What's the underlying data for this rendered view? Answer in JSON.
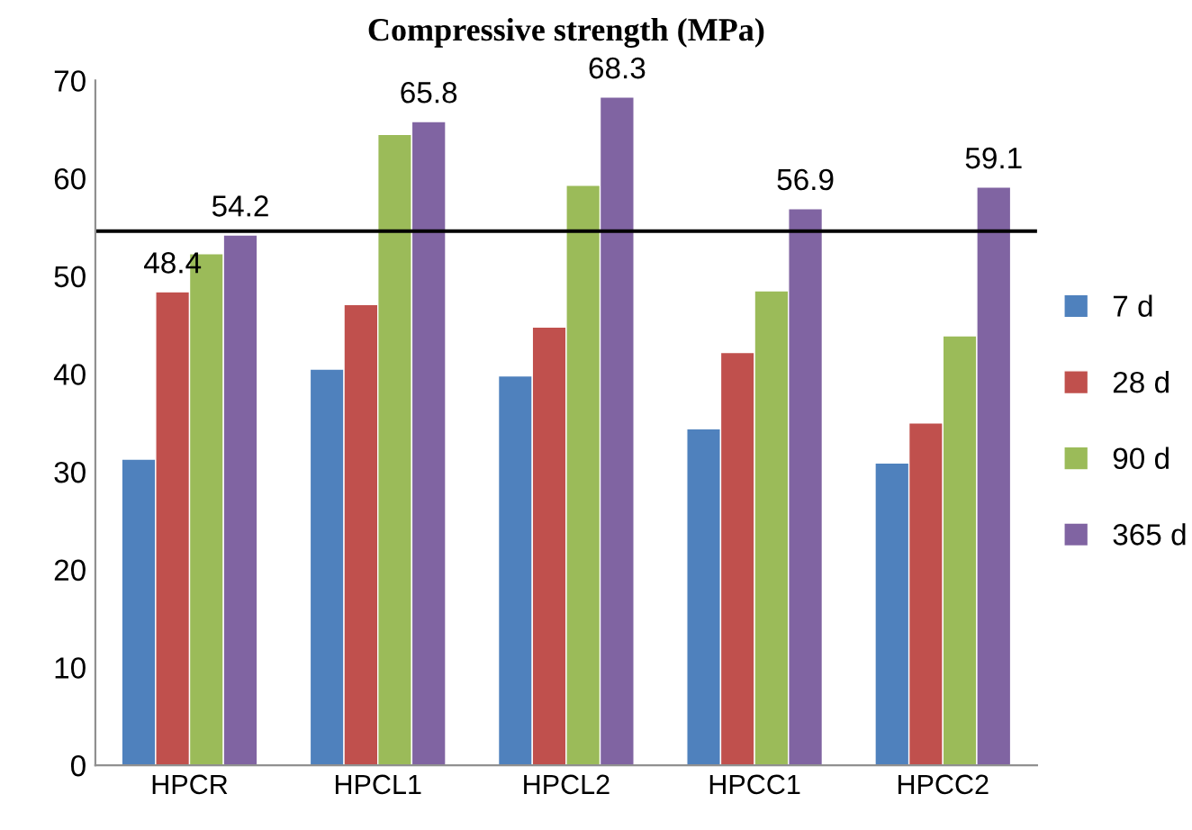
{
  "chart_data": {
    "type": "bar",
    "title": "Compressive strength (MPa)",
    "categories": [
      "HPCR",
      "HPCL1",
      "HPCL2",
      "HPCC1",
      "HPCC2"
    ],
    "series": [
      {
        "name": "7 d",
        "color": "#4f81bd",
        "values": [
          31.3,
          40.5,
          39.8,
          34.4,
          30.9
        ]
      },
      {
        "name": "28 d",
        "color": "#c0504d",
        "values": [
          48.4,
          47.1,
          44.8,
          42.2,
          35.0
        ],
        "value_labels": [
          "48.4",
          null,
          null,
          null,
          null
        ]
      },
      {
        "name": "90 d",
        "color": "#9bbb59",
        "values": [
          52.3,
          64.5,
          59.3,
          48.5,
          43.9
        ]
      },
      {
        "name": "365 d",
        "color": "#8064a2",
        "values": [
          54.2,
          65.8,
          68.3,
          56.9,
          59.1
        ],
        "value_labels": [
          "54.2",
          "65.8",
          "68.3",
          "56.9",
          "59.1"
        ]
      }
    ],
    "ylim": [
      0,
      70
    ],
    "yticks": [
      0,
      10,
      20,
      30,
      40,
      50,
      60,
      70
    ],
    "ref_lines": [
      {
        "axis": "y",
        "value": 54.6,
        "color": "#000000"
      }
    ],
    "grid": false,
    "legend": "right"
  }
}
